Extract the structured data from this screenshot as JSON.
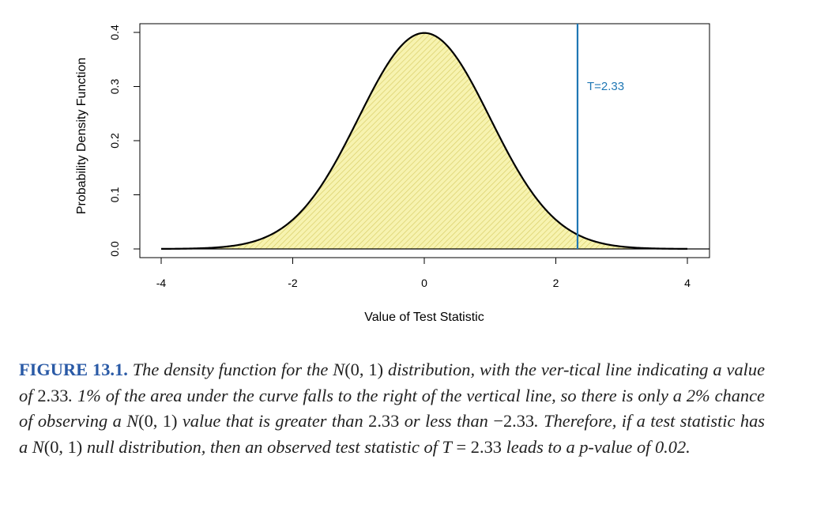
{
  "chart_data": {
    "type": "area",
    "title": "",
    "xlabel": "Value of Test Statistic",
    "ylabel": "Probability Density Function",
    "xlim": [
      -4,
      4
    ],
    "ylim": [
      0,
      0.4
    ],
    "x_ticks": [
      -4,
      -2,
      0,
      2,
      4
    ],
    "x_tick_labels": [
      "-4",
      "-2",
      "0",
      "2",
      "4"
    ],
    "y_ticks": [
      0.0,
      0.1,
      0.2,
      0.3,
      0.4
    ],
    "y_tick_labels": [
      "0.0",
      "0.1",
      "0.2",
      "0.3",
      "0.4"
    ],
    "series": [
      {
        "name": "N(0,1) density",
        "distribution": "normal",
        "mean": 0,
        "sd": 1,
        "x_range": [
          -4,
          4
        ],
        "fill": "hatched-yellow"
      }
    ],
    "vertical_line": {
      "x": 2.33,
      "label": "T=2.33",
      "color": "#1f77b4"
    },
    "grid": false,
    "colors": {
      "curve": "#000000",
      "fill": "#f7f3b0",
      "hatch": "#d9cf6a",
      "line": "#1f77b4"
    }
  },
  "caption": {
    "label": "FIGURE 13.1.",
    "segments": [
      {
        "t": " The density function for the ",
        "s": "i"
      },
      {
        "t": "N",
        "s": "i"
      },
      {
        "t": "(0, 1)",
        "s": "u"
      },
      {
        "t": " distribution, with the ver-tical line indicating a value of ",
        "s": "i"
      },
      {
        "t": "2.33",
        "s": "u"
      },
      {
        "t": ". 1% of the area under the curve falls to the right of the vertical line, so there is only a 2% chance of observing a ",
        "s": "i"
      },
      {
        "t": "N",
        "s": "i"
      },
      {
        "t": "(0, 1)",
        "s": "u"
      },
      {
        "t": " value that is greater than ",
        "s": "i"
      },
      {
        "t": "2.33",
        "s": "u"
      },
      {
        "t": " or less than ",
        "s": "i"
      },
      {
        "t": "−2.33",
        "s": "u"
      },
      {
        "t": ". Therefore, if a test statistic has a ",
        "s": "i"
      },
      {
        "t": "N",
        "s": "i"
      },
      {
        "t": "(0, 1)",
        "s": "u"
      },
      {
        "t": " null distribution, then an observed test statistic of ",
        "s": "i"
      },
      {
        "t": "T",
        "s": "i"
      },
      {
        "t": " = 2.33",
        "s": "u"
      },
      {
        "t": " leads to a p-value of 0.02.",
        "s": "i"
      }
    ]
  }
}
